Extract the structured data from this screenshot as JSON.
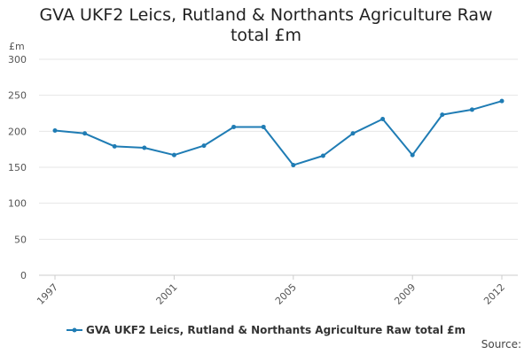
{
  "chart_data": {
    "type": "line",
    "title": "GVA UKF2 Leics, Rutland & Northants Agriculture Raw total £m",
    "ylabel": "£m",
    "xlabel": "",
    "x": [
      1997,
      1998,
      1999,
      2000,
      2001,
      2002,
      2003,
      2004,
      2005,
      2006,
      2007,
      2008,
      2009,
      2010,
      2011,
      2012
    ],
    "x_tick_labels": [
      "1997",
      "2001",
      "2005",
      "2009",
      "2012"
    ],
    "y_ticks": [
      0,
      50,
      100,
      150,
      200,
      250,
      300
    ],
    "ylim": [
      0,
      300
    ],
    "grid": true,
    "legend_position": "bottom",
    "series": [
      {
        "name": "GVA UKF2 Leics, Rutland & Northants Agriculture Raw total £m",
        "color": "#1f7cb4",
        "values": [
          201,
          197,
          179,
          177,
          167,
          180,
          206,
          206,
          153,
          166,
          197,
          217,
          167,
          223,
          230,
          242
        ]
      }
    ]
  },
  "source_label": "Source:"
}
